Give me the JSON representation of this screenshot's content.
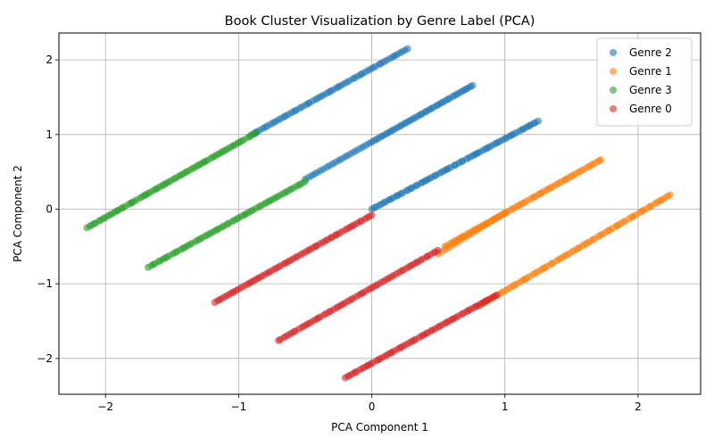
{
  "chart_data": {
    "type": "scatter",
    "title": "Book Cluster Visualization by Genre Label (PCA)",
    "xlabel": "PCA Component 1",
    "ylabel": "PCA Component 2",
    "xlim": [
      -2.35,
      2.47
    ],
    "ylim": [
      -2.48,
      2.36
    ],
    "xticks": [
      -2,
      -1,
      0,
      1,
      2
    ],
    "yticks": [
      -2,
      -1,
      0,
      1,
      2
    ],
    "xtick_labels": [
      "−2",
      "−1",
      "0",
      "1",
      "2"
    ],
    "ytick_labels": [
      "−2",
      "−1",
      "0",
      "1",
      "2"
    ],
    "grid": true,
    "legend_position": "top-right",
    "point_alpha": 0.6,
    "series": [
      {
        "name": "Genre 2",
        "color": "#1f77b4",
        "segments": [
          {
            "x0": -0.9,
            "y0": 1.0,
            "x1": 0.27,
            "y1": 2.15,
            "n": 60
          },
          {
            "x0": 0.0,
            "y0": 0.9,
            "x1": 0.76,
            "y1": 1.66,
            "n": 45
          },
          {
            "x0": 0.0,
            "y0": 0.0,
            "x1": 1.25,
            "y1": 1.18,
            "n": 70
          },
          {
            "x0": -0.5,
            "y0": 0.4,
            "x1": -0.02,
            "y1": 0.88,
            "n": 22
          }
        ]
      },
      {
        "name": "Genre 1",
        "color": "#ff7f0e",
        "segments": [
          {
            "x0": 0.55,
            "y0": -0.5,
            "x1": 1.72,
            "y1": 0.66,
            "n": 65
          },
          {
            "x0": 0.8,
            "y0": -1.3,
            "x1": 2.24,
            "y1": 0.19,
            "n": 75
          },
          {
            "x0": 0.5,
            "y0": -0.6,
            "x1": 1.0,
            "y1": -0.05,
            "n": 20
          }
        ]
      },
      {
        "name": "Genre 3",
        "color": "#2ca02c",
        "segments": [
          {
            "x0": -2.14,
            "y0": -0.25,
            "x1": -0.87,
            "y1": 1.02,
            "n": 75
          },
          {
            "x0": -1.68,
            "y0": -0.78,
            "x1": -0.5,
            "y1": 0.37,
            "n": 65
          }
        ]
      },
      {
        "name": "Genre 0",
        "color": "#d62728",
        "segments": [
          {
            "x0": -1.18,
            "y0": -1.25,
            "x1": 0.0,
            "y1": -0.08,
            "n": 65
          },
          {
            "x0": -0.7,
            "y0": -1.76,
            "x1": 0.5,
            "y1": -0.55,
            "n": 65
          },
          {
            "x0": -0.2,
            "y0": -2.26,
            "x1": 0.94,
            "y1": -1.15,
            "n": 65
          }
        ]
      }
    ]
  }
}
